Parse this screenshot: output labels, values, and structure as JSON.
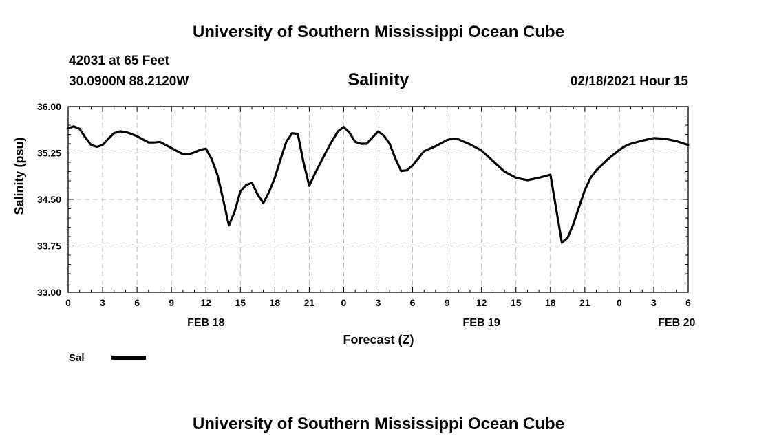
{
  "header": {
    "title": "University of Southern Mississippi Ocean Cube",
    "station_line1": "42031 at 65 Feet",
    "station_line2": "30.0900N 88.2120W",
    "subtitle": "Salinity",
    "datetime": "02/18/2021 Hour 15"
  },
  "footer": {
    "title": "University of Southern Mississippi Ocean Cube"
  },
  "colors": {
    "line": "#000000",
    "grid": "#bbbbbb",
    "background": "#ffffff"
  },
  "chart_data": {
    "type": "line",
    "title": "Salinity",
    "xlabel": "Forecast (Z)",
    "ylabel": "Salinity (psu)",
    "xlim": [
      0,
      54
    ],
    "ylim": [
      33.0,
      36.0
    ],
    "grid": true,
    "x_ticks": [
      {
        "x": 0,
        "label": "0"
      },
      {
        "x": 3,
        "label": "3"
      },
      {
        "x": 6,
        "label": "6"
      },
      {
        "x": 9,
        "label": "9"
      },
      {
        "x": 12,
        "label": "12"
      },
      {
        "x": 15,
        "label": "15"
      },
      {
        "x": 18,
        "label": "18"
      },
      {
        "x": 21,
        "label": "21"
      },
      {
        "x": 24,
        "label": "0"
      },
      {
        "x": 27,
        "label": "3"
      },
      {
        "x": 30,
        "label": "6"
      },
      {
        "x": 33,
        "label": "9"
      },
      {
        "x": 36,
        "label": "12"
      },
      {
        "x": 39,
        "label": "15"
      },
      {
        "x": 42,
        "label": "18"
      },
      {
        "x": 45,
        "label": "21"
      },
      {
        "x": 48,
        "label": "0"
      },
      {
        "x": 51,
        "label": "3"
      },
      {
        "x": 54,
        "label": "6"
      }
    ],
    "y_ticks": [
      {
        "y": 33.0,
        "label": "33.00"
      },
      {
        "y": 33.75,
        "label": "33.75"
      },
      {
        "y": 34.5,
        "label": "34.50"
      },
      {
        "y": 35.25,
        "label": "35.25"
      },
      {
        "y": 36.0,
        "label": "36.00"
      }
    ],
    "date_labels": [
      {
        "x": 12,
        "label": "FEB 18"
      },
      {
        "x": 36,
        "label": "FEB 19"
      },
      {
        "x": 53,
        "label": "FEB 20"
      }
    ],
    "legend": [
      {
        "name": "Sal",
        "placement": "bottom-left"
      }
    ],
    "series": [
      {
        "name": "Sal",
        "x": [
          0,
          0.5,
          1,
          1.5,
          2,
          2.5,
          3,
          3.5,
          4,
          4.5,
          5,
          5.5,
          6,
          6.5,
          7,
          7.5,
          8,
          8.5,
          9,
          9.5,
          10,
          10.5,
          11,
          11.5,
          12,
          12.5,
          13,
          13.5,
          14,
          14.5,
          15,
          15.5,
          16,
          16.5,
          17,
          17.5,
          18,
          18.5,
          19,
          19.5,
          20,
          20.5,
          21,
          21.5,
          22,
          22.5,
          23,
          23.5,
          24,
          24.5,
          25,
          25.5,
          26,
          26.5,
          27,
          27.5,
          28,
          28.5,
          29,
          29.5,
          30,
          31,
          32,
          33,
          33.5,
          34,
          35,
          36,
          37,
          38,
          39,
          40,
          41,
          42,
          43,
          43.5,
          44,
          44.5,
          45,
          45.5,
          46,
          47,
          48,
          48.5,
          49,
          50,
          51,
          52,
          53,
          54
        ],
        "values": [
          35.65,
          35.68,
          35.64,
          35.5,
          35.38,
          35.35,
          35.38,
          35.48,
          35.57,
          35.6,
          35.59,
          35.56,
          35.52,
          35.47,
          35.42,
          35.42,
          35.43,
          35.38,
          35.33,
          35.28,
          35.23,
          35.23,
          35.26,
          35.3,
          35.32,
          35.15,
          34.9,
          34.5,
          34.08,
          34.3,
          34.63,
          34.73,
          34.77,
          34.58,
          34.44,
          34.62,
          34.85,
          35.15,
          35.43,
          35.57,
          35.56,
          35.1,
          34.72,
          34.92,
          35.1,
          35.28,
          35.45,
          35.6,
          35.67,
          35.58,
          35.43,
          35.4,
          35.4,
          35.5,
          35.6,
          35.53,
          35.4,
          35.16,
          34.96,
          34.97,
          35.05,
          35.28,
          35.36,
          35.46,
          35.48,
          35.47,
          35.39,
          35.29,
          35.12,
          34.95,
          34.85,
          34.81,
          34.85,
          34.9,
          33.8,
          33.88,
          34.1,
          34.38,
          34.65,
          34.85,
          34.97,
          35.15,
          35.3,
          35.36,
          35.4,
          35.45,
          35.49,
          35.48,
          35.44,
          35.38
        ]
      }
    ]
  }
}
